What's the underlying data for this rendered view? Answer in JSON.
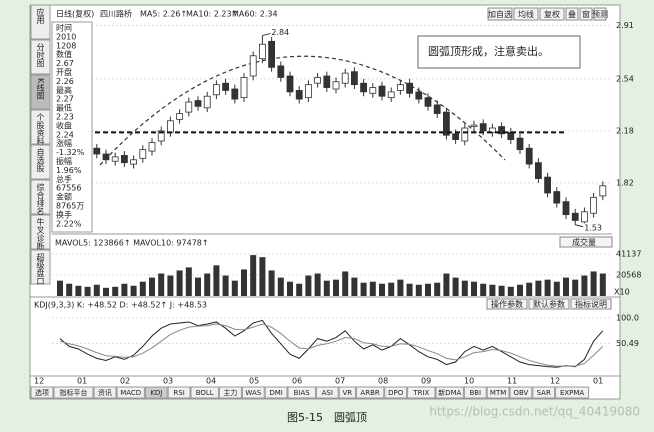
{
  "toolbar": [
    "应用",
    "分时图",
    "K线图",
    "个股资料",
    "自选股",
    "综合排名",
    "牛叉诊断",
    "超级盘口"
  ],
  "info": [
    "时间",
    "2010",
    "1208",
    "数值",
    "2.67",
    "开盘",
    "2.26",
    "最高",
    "2.27",
    "最低",
    "2.23",
    "收盘",
    "2.24",
    "涨幅",
    "-1.32%",
    "振幅",
    "1.96%",
    "总手",
    "67556",
    "金额",
    "8765万",
    "换手",
    "2.22%"
  ],
  "header": {
    "period": "日线(复权)",
    "stock": "四川路桥",
    "ma": [
      "MA5: 2.26↑",
      "MA10: 2.23↑",
      "MA60: 2.34"
    ],
    "buttons": [
      "加自选",
      "均线",
      "复权",
      "叠",
      "窗",
      "预测"
    ]
  },
  "chart_data": [
    {
      "type": "candlestick",
      "up_color": "#333333",
      "down_color": "#333333",
      "neckline": 2.17,
      "high_label": "2.84",
      "low_label": "1.53",
      "note": "圆弧顶形成，注意卖出。",
      "ylim": [
        1.48,
        2.92
      ],
      "yticks": [
        2.91,
        2.54,
        2.18,
        1.82
      ],
      "x_labels": [
        "12",
        "01",
        "02",
        "03",
        "04",
        "05",
        "06",
        "07",
        "08",
        "09",
        "10",
        "11",
        "12",
        "01"
      ],
      "open": [
        2.05,
        2.08,
        2.13,
        2.1,
        2.06,
        2.02,
        1.97,
        2.01,
        1.95,
        1.99,
        2.04,
        2.11,
        2.17,
        2.26,
        2.31,
        2.39,
        2.34,
        2.43,
        2.51,
        2.47,
        2.41,
        2.56,
        2.68,
        2.8,
        2.63,
        2.56,
        2.46,
        2.41,
        2.51,
        2.56,
        2.47,
        2.51,
        2.59,
        2.51,
        2.44,
        2.49,
        2.41,
        2.46,
        2.51,
        2.45,
        2.41,
        2.36,
        2.31,
        2.16,
        2.11,
        2.21,
        2.23,
        2.17,
        2.21,
        2.17,
        2.13,
        2.06,
        1.96,
        1.86,
        1.76,
        1.69,
        1.61,
        1.55,
        1.61,
        1.73
      ],
      "high": [
        2.11,
        2.15,
        2.16,
        2.13,
        2.09,
        2.05,
        2.03,
        2.04,
        2.01,
        2.08,
        2.13,
        2.21,
        2.28,
        2.33,
        2.41,
        2.42,
        2.45,
        2.53,
        2.54,
        2.5,
        2.58,
        2.73,
        2.84,
        2.83,
        2.66,
        2.59,
        2.49,
        2.53,
        2.58,
        2.59,
        2.55,
        2.61,
        2.62,
        2.54,
        2.51,
        2.52,
        2.48,
        2.53,
        2.54,
        2.48,
        2.44,
        2.39,
        2.34,
        2.19,
        2.23,
        2.25,
        2.26,
        2.23,
        2.24,
        2.2,
        2.16,
        2.09,
        1.99,
        1.89,
        1.79,
        1.72,
        1.64,
        1.65,
        1.75,
        1.83
      ],
      "low": [
        2.02,
        2.05,
        2.07,
        2.02,
        1.99,
        1.95,
        1.94,
        1.93,
        1.92,
        1.96,
        2.01,
        2.08,
        2.14,
        2.23,
        2.28,
        2.32,
        2.31,
        2.4,
        2.43,
        2.37,
        2.38,
        2.53,
        2.65,
        2.59,
        2.52,
        2.42,
        2.37,
        2.38,
        2.48,
        2.45,
        2.44,
        2.48,
        2.47,
        2.42,
        2.41,
        2.39,
        2.38,
        2.43,
        2.41,
        2.37,
        2.32,
        2.27,
        2.12,
        2.09,
        2.08,
        2.18,
        2.15,
        2.14,
        2.13,
        2.09,
        2.02,
        1.92,
        1.82,
        1.72,
        1.65,
        1.57,
        1.53,
        1.54,
        1.58,
        1.7
      ],
      "close": [
        2.08,
        2.12,
        2.1,
        2.05,
        2.02,
        1.98,
        2.0,
        1.96,
        1.98,
        2.05,
        2.1,
        2.18,
        2.25,
        2.3,
        2.38,
        2.35,
        2.42,
        2.5,
        2.46,
        2.4,
        2.55,
        2.7,
        2.78,
        2.62,
        2.55,
        2.45,
        2.4,
        2.5,
        2.55,
        2.48,
        2.52,
        2.58,
        2.5,
        2.45,
        2.48,
        2.42,
        2.45,
        2.5,
        2.44,
        2.4,
        2.35,
        2.3,
        2.15,
        2.12,
        2.2,
        2.22,
        2.18,
        2.2,
        2.16,
        2.12,
        2.05,
        1.95,
        1.85,
        1.75,
        1.68,
        1.6,
        1.56,
        1.62,
        1.72,
        1.8
      ]
    },
    {
      "type": "bar",
      "title": "MAVOL5: 123866↑ MAVOL10: 97478↑",
      "dropdown": "成交量",
      "unit_label": "X10",
      "color": "#333333",
      "ylim": [
        0,
        45000
      ],
      "yticks": [
        41137,
        20568
      ],
      "values": [
        15000,
        12000,
        10000,
        9000,
        11000,
        8000,
        9000,
        12000,
        10000,
        14000,
        18000,
        22000,
        20000,
        25000,
        28000,
        18000,
        22000,
        30000,
        20000,
        15000,
        26000,
        40000,
        38000,
        25000,
        18000,
        14000,
        12000,
        20000,
        22000,
        15000,
        16000,
        24000,
        18000,
        13000,
        14000,
        12000,
        13000,
        16000,
        12000,
        11000,
        12000,
        13000,
        22000,
        18000,
        15000,
        14000,
        12000,
        11000,
        10000,
        9000,
        11000,
        13000,
        15000,
        16000,
        14000,
        18000,
        16000,
        20000,
        24000,
        22000
      ]
    },
    {
      "type": "line",
      "title": "KDJ(9,3,3) K: +48.52 D: +48.52↑ J: +48.53",
      "buttons": [
        "操作参数",
        "默认参数",
        "指标说明"
      ],
      "ylim": [
        -10,
        115
      ],
      "yticks": [
        {
          "value": 100,
          "label": "100.0"
        },
        50.49
      ],
      "series": [
        {
          "color": "#222222",
          "values": [
            60,
            45,
            40,
            30,
            22,
            18,
            25,
            20,
            28,
            45,
            65,
            80,
            88,
            90,
            92,
            85,
            88,
            92,
            80,
            65,
            75,
            90,
            95,
            70,
            50,
            30,
            22,
            40,
            60,
            55,
            62,
            75,
            55,
            40,
            48,
            38,
            45,
            60,
            48,
            35,
            25,
            20,
            10,
            15,
            35,
            45,
            38,
            45,
            35,
            25,
            15,
            10,
            8,
            6,
            5,
            8,
            6,
            20,
            55,
            75
          ]
        },
        {
          "color": "#888888",
          "values": [
            55,
            50,
            46,
            40,
            33,
            27,
            26,
            24,
            25,
            32,
            42,
            55,
            68,
            76,
            82,
            84,
            85,
            88,
            85,
            78,
            77,
            82,
            88,
            82,
            70,
            55,
            42,
            40,
            47,
            50,
            55,
            62,
            60,
            52,
            50,
            45,
            45,
            50,
            49,
            44,
            37,
            31,
            22,
            19,
            25,
            33,
            35,
            39,
            37,
            32,
            25,
            18,
            13,
            9,
            7,
            7,
            7,
            12,
            28,
            45
          ]
        }
      ]
    }
  ],
  "tabs": [
    "选项",
    "指标平台",
    "资讯",
    "MACD",
    "KDJ",
    "RSI",
    "BOLL",
    "主力",
    "WAS",
    "DMI",
    "BIAS",
    "ASI",
    "VR",
    "ARBR",
    "DPO",
    "TRIX",
    "新DMA",
    "BBI",
    "MTM",
    "OBV",
    "SAR",
    "EXPMA"
  ],
  "caption": "图5-15　圆弧顶",
  "watermark": "https://blog.csdn.net/qq_40419080"
}
